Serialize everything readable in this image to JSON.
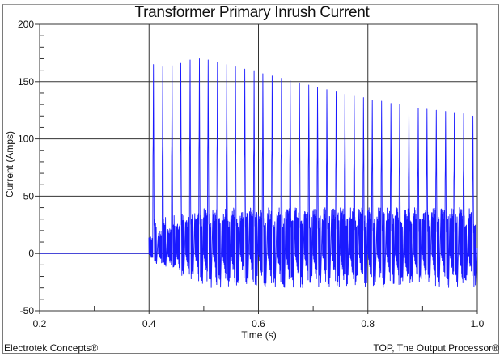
{
  "chart_data": {
    "type": "line",
    "title": "Transformer Primary Inrush Current",
    "xlabel": "Time (s)",
    "ylabel": "Current (Amps)",
    "xlim": [
      0.2,
      1.0
    ],
    "ylim": [
      -50,
      200
    ],
    "x_ticks": [
      0.2,
      0.4,
      0.6,
      0.8,
      1.0
    ],
    "x_tick_labels": [
      "0.2",
      "0.4",
      "0.6",
      "0.8",
      "1.0"
    ],
    "x_minor_ticks": [
      0.3,
      0.5,
      0.7,
      0.9
    ],
    "y_ticks": [
      -50,
      0,
      50,
      100,
      150,
      200
    ],
    "y_tick_labels": [
      "-50",
      "0",
      "50",
      "100",
      "150",
      "200"
    ],
    "y_minor_step": 10,
    "grid": true,
    "legend": null,
    "series": [
      {
        "name": "Primary inrush current",
        "color": "#1a1aff",
        "description": "Zero until energization at ~0.40 s, then 60 Hz unipolar inrush pulses decaying slowly; high-frequency oscillation between ~-30 A and ~40 A",
        "energize_time": 0.4,
        "frequency_hz": 60,
        "peak_envelope": {
          "t": [
            0.408,
            0.425,
            0.442,
            0.458,
            0.475,
            0.492,
            0.508,
            0.525,
            0.542,
            0.558,
            0.575,
            0.592,
            0.608,
            0.625,
            0.642,
            0.658,
            0.675,
            0.692,
            0.708,
            0.725,
            0.742,
            0.758,
            0.775,
            0.792,
            0.808,
            0.825,
            0.842,
            0.858,
            0.875,
            0.892,
            0.908,
            0.925,
            0.942,
            0.958,
            0.975,
            0.992
          ],
          "peak": [
            165,
            163,
            164,
            166,
            169,
            170,
            169,
            167,
            165,
            163,
            161,
            159,
            157,
            155,
            153,
            151,
            149,
            147,
            145,
            143,
            141,
            139,
            138,
            136,
            134,
            133,
            131,
            130,
            128,
            127,
            126,
            125,
            124,
            123,
            122,
            120
          ]
        },
        "oscillation_band": {
          "min": -30,
          "max": 40
        },
        "mid_step_level": 85
      }
    ]
  },
  "chart": {
    "title": "Transformer Primary Inrush Current",
    "xlabel": "Time (s)",
    "ylabel": "Current (Amps)"
  },
  "footer": {
    "left": "Electrotek Concepts®",
    "right": "TOP, The Output Processor®"
  },
  "colors": {
    "trace": "#1a1aff",
    "grid": "#333333",
    "frame": "#7a7a7a"
  }
}
